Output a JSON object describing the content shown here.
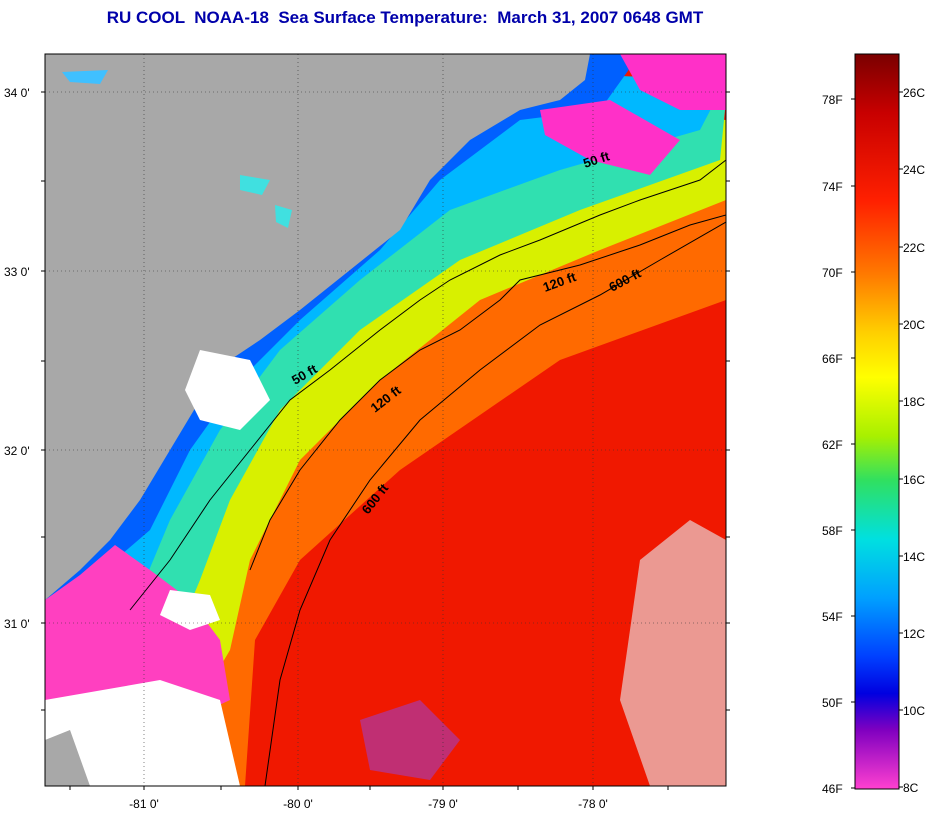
{
  "title": "RU COOL  NOAA-18  Sea Surface Temperature:  March 31, 2007 0648 GMT",
  "map": {
    "latitude_labels": [
      "34 0'",
      "33 0'",
      "32 0'",
      "31 0'"
    ],
    "longitude_labels": [
      "-81 0'",
      "-80 0'",
      "-79 0'",
      "-78 0'"
    ],
    "contour_labels": [
      "50 ft",
      "120 ft",
      "600 ft",
      "50 ft",
      "120 ft",
      "600 ft"
    ],
    "colors": {
      "land": "#a8a8a8",
      "cloud": "#ffffff",
      "contour": "#000000"
    }
  },
  "colorbar": {
    "fahrenheit_labels": [
      "78F",
      "74F",
      "70F",
      "66F",
      "62F",
      "58F",
      "54F",
      "50F",
      "46F"
    ],
    "celsius_labels": [
      "26C",
      "24C",
      "22C",
      "20C",
      "18C",
      "16C",
      "14C",
      "12C",
      "10C",
      "8C"
    ],
    "gradient_stops": [
      "#7a0000",
      "#c80000",
      "#ff2000",
      "#ff7a00",
      "#ffd000",
      "#ffff00",
      "#a8f000",
      "#30e060",
      "#00e0e0",
      "#00a0ff",
      "#0040ff",
      "#0000e0",
      "#8000c0",
      "#ff40d0"
    ]
  }
}
